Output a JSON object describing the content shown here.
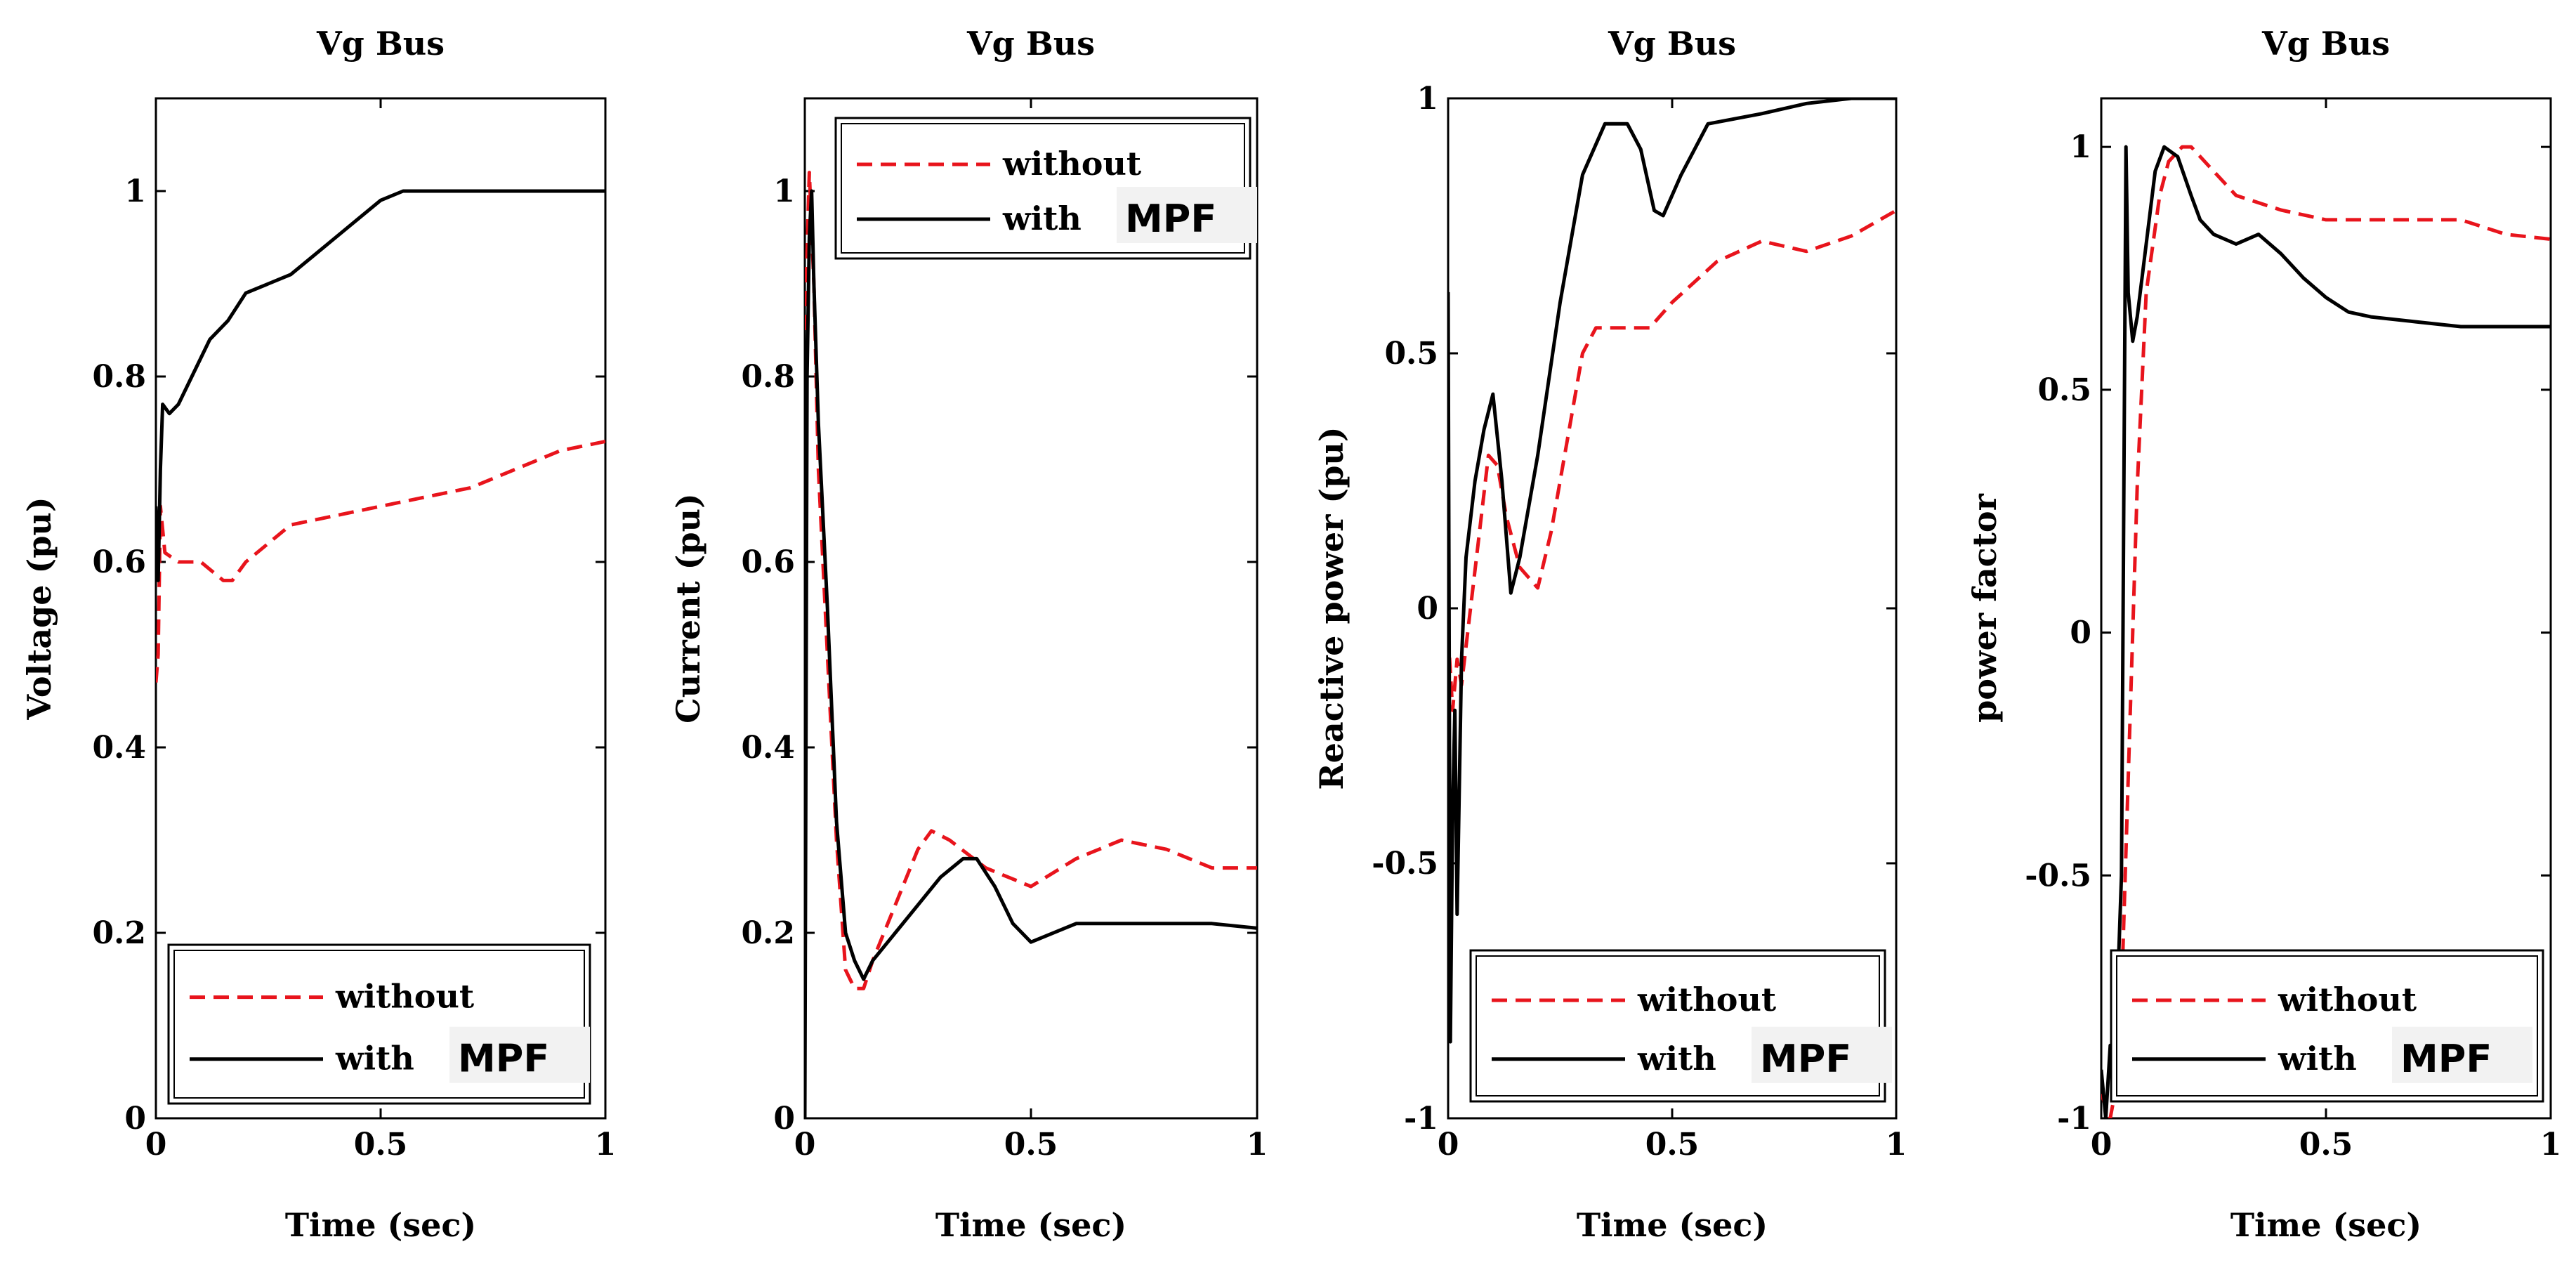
{
  "chart_data": [
    {
      "type": "line",
      "title": "Vg Bus",
      "xlabel": "Time (sec)",
      "ylabel": "Voltage (pu)",
      "xlim": [
        0,
        1
      ],
      "ylim": [
        0,
        1.1
      ],
      "xticks": [
        {
          "value": 0,
          "label": "0"
        },
        {
          "value": 0.5,
          "label": "0.5"
        },
        {
          "value": 1,
          "label": "1"
        }
      ],
      "yticks": [
        {
          "value": 0,
          "label": "0"
        },
        {
          "value": 0.2,
          "label": "0.2"
        },
        {
          "value": 0.4,
          "label": "0.4"
        },
        {
          "value": 0.6,
          "label": "0.6"
        },
        {
          "value": 0.8,
          "label": "0.8"
        },
        {
          "value": 1,
          "label": "1"
        }
      ],
      "legend": {
        "position": "bottom",
        "items": [
          {
            "name": "without",
            "suffix": ""
          },
          {
            "name": "with",
            "suffix": "MPF"
          }
        ]
      },
      "series": [
        {
          "name": "without",
          "color": "#e8141c",
          "dash": "dashed",
          "points": [
            [
              0,
              0.47
            ],
            [
              0.005,
              0.5
            ],
            [
              0.01,
              0.66
            ],
            [
              0.02,
              0.61
            ],
            [
              0.05,
              0.6
            ],
            [
              0.1,
              0.6
            ],
            [
              0.15,
              0.58
            ],
            [
              0.17,
              0.58
            ],
            [
              0.2,
              0.6
            ],
            [
              0.25,
              0.62
            ],
            [
              0.3,
              0.64
            ],
            [
              0.4,
              0.65
            ],
            [
              0.5,
              0.66
            ],
            [
              0.6,
              0.67
            ],
            [
              0.7,
              0.68
            ],
            [
              0.8,
              0.7
            ],
            [
              0.9,
              0.72
            ],
            [
              1,
              0.73
            ]
          ]
        },
        {
          "name": "with MPF",
          "color": "#000000",
          "dash": "solid",
          "points": [
            [
              0,
              0.66
            ],
            [
              0.005,
              0.58
            ],
            [
              0.01,
              0.7
            ],
            [
              0.015,
              0.77
            ],
            [
              0.03,
              0.76
            ],
            [
              0.05,
              0.77
            ],
            [
              0.08,
              0.8
            ],
            [
              0.12,
              0.84
            ],
            [
              0.16,
              0.86
            ],
            [
              0.2,
              0.89
            ],
            [
              0.25,
              0.9
            ],
            [
              0.3,
              0.91
            ],
            [
              0.35,
              0.93
            ],
            [
              0.4,
              0.95
            ],
            [
              0.45,
              0.97
            ],
            [
              0.5,
              0.99
            ],
            [
              0.55,
              1.0
            ],
            [
              0.7,
              1.0
            ],
            [
              1,
              1.0
            ]
          ]
        }
      ]
    },
    {
      "type": "line",
      "title": "Vg Bus",
      "xlabel": "Time (sec)",
      "ylabel": "Current (pu)",
      "xlim": [
        0,
        1
      ],
      "ylim": [
        0,
        1.1
      ],
      "xticks": [
        {
          "value": 0,
          "label": "0"
        },
        {
          "value": 0.5,
          "label": "0.5"
        },
        {
          "value": 1,
          "label": "1"
        }
      ],
      "yticks": [
        {
          "value": 0,
          "label": "0"
        },
        {
          "value": 0.2,
          "label": "0.2"
        },
        {
          "value": 0.4,
          "label": "0.4"
        },
        {
          "value": 0.6,
          "label": "0.6"
        },
        {
          "value": 0.8,
          "label": "0.8"
        },
        {
          "value": 1,
          "label": "1"
        }
      ],
      "legend": {
        "position": "top",
        "items": [
          {
            "name": "without",
            "suffix": ""
          },
          {
            "name": "with",
            "suffix": "MPF"
          }
        ]
      },
      "series": [
        {
          "name": "without",
          "color": "#e8141c",
          "dash": "dashed",
          "points": [
            [
              0,
              0.85
            ],
            [
              0.01,
              1.02
            ],
            [
              0.02,
              0.9
            ],
            [
              0.03,
              0.7
            ],
            [
              0.05,
              0.5
            ],
            [
              0.07,
              0.3
            ],
            [
              0.09,
              0.16
            ],
            [
              0.11,
              0.14
            ],
            [
              0.13,
              0.14
            ],
            [
              0.15,
              0.17
            ],
            [
              0.2,
              0.23
            ],
            [
              0.25,
              0.29
            ],
            [
              0.28,
              0.31
            ],
            [
              0.32,
              0.3
            ],
            [
              0.4,
              0.27
            ],
            [
              0.5,
              0.25
            ],
            [
              0.6,
              0.28
            ],
            [
              0.7,
              0.3
            ],
            [
              0.8,
              0.29
            ],
            [
              0.9,
              0.27
            ],
            [
              1,
              0.27
            ]
          ]
        },
        {
          "name": "with MPF",
          "color": "#000000",
          "dash": "solid",
          "points": [
            [
              0,
              0
            ],
            [
              0.005,
              0.8
            ],
            [
              0.01,
              0.95
            ],
            [
              0.015,
              1.0
            ],
            [
              0.02,
              0.9
            ],
            [
              0.03,
              0.75
            ],
            [
              0.05,
              0.55
            ],
            [
              0.07,
              0.32
            ],
            [
              0.09,
              0.2
            ],
            [
              0.11,
              0.17
            ],
            [
              0.13,
              0.15
            ],
            [
              0.15,
              0.17
            ],
            [
              0.2,
              0.2
            ],
            [
              0.25,
              0.23
            ],
            [
              0.3,
              0.26
            ],
            [
              0.35,
              0.28
            ],
            [
              0.38,
              0.28
            ],
            [
              0.42,
              0.25
            ],
            [
              0.46,
              0.21
            ],
            [
              0.5,
              0.19
            ],
            [
              0.6,
              0.21
            ],
            [
              0.7,
              0.21
            ],
            [
              0.8,
              0.21
            ],
            [
              0.9,
              0.21
            ],
            [
              1,
              0.205
            ]
          ]
        }
      ]
    },
    {
      "type": "line",
      "title": "Vg Bus",
      "xlabel": "Time (sec)",
      "ylabel": "Reactive power (pu)",
      "xlim": [
        0,
        1
      ],
      "ylim": [
        -1,
        1
      ],
      "xticks": [
        {
          "value": 0,
          "label": "0"
        },
        {
          "value": 0.5,
          "label": "0.5"
        },
        {
          "value": 1,
          "label": "1"
        }
      ],
      "yticks": [
        {
          "value": -1,
          "label": "-1"
        },
        {
          "value": -0.5,
          "label": "-0.5"
        },
        {
          "value": 0,
          "label": "0"
        },
        {
          "value": 0.5,
          "label": "0.5"
        },
        {
          "value": 1,
          "label": "1"
        }
      ],
      "legend": {
        "position": "bottom",
        "items": [
          {
            "name": "without",
            "suffix": ""
          },
          {
            "name": "with",
            "suffix": "MPF"
          }
        ]
      },
      "series": [
        {
          "name": "without",
          "color": "#e8141c",
          "dash": "dashed",
          "points": [
            [
              0,
              -0.05
            ],
            [
              0.01,
              -0.2
            ],
            [
              0.02,
              -0.1
            ],
            [
              0.03,
              -0.15
            ],
            [
              0.05,
              0.0
            ],
            [
              0.07,
              0.15
            ],
            [
              0.09,
              0.3
            ],
            [
              0.11,
              0.28
            ],
            [
              0.13,
              0.18
            ],
            [
              0.16,
              0.08
            ],
            [
              0.2,
              0.04
            ],
            [
              0.23,
              0.15
            ],
            [
              0.27,
              0.35
            ],
            [
              0.3,
              0.5
            ],
            [
              0.33,
              0.55
            ],
            [
              0.4,
              0.55
            ],
            [
              0.45,
              0.55
            ],
            [
              0.5,
              0.6
            ],
            [
              0.6,
              0.68
            ],
            [
              0.7,
              0.72
            ],
            [
              0.8,
              0.7
            ],
            [
              0.9,
              0.73
            ],
            [
              1,
              0.78
            ]
          ]
        },
        {
          "name": "with MPF",
          "color": "#000000",
          "dash": "solid",
          "points": [
            [
              0,
              0.62
            ],
            [
              0.005,
              -0.85
            ],
            [
              0.01,
              -0.4
            ],
            [
              0.015,
              -0.2
            ],
            [
              0.02,
              -0.6
            ],
            [
              0.03,
              -0.1
            ],
            [
              0.04,
              0.1
            ],
            [
              0.06,
              0.25
            ],
            [
              0.08,
              0.35
            ],
            [
              0.1,
              0.42
            ],
            [
              0.12,
              0.25
            ],
            [
              0.14,
              0.03
            ],
            [
              0.16,
              0.1
            ],
            [
              0.2,
              0.3
            ],
            [
              0.25,
              0.6
            ],
            [
              0.3,
              0.85
            ],
            [
              0.35,
              0.95
            ],
            [
              0.4,
              0.95
            ],
            [
              0.43,
              0.9
            ],
            [
              0.46,
              0.78
            ],
            [
              0.48,
              0.77
            ],
            [
              0.52,
              0.85
            ],
            [
              0.58,
              0.95
            ],
            [
              0.7,
              0.97
            ],
            [
              0.8,
              0.99
            ],
            [
              0.9,
              1.0
            ],
            [
              1,
              1.0
            ]
          ]
        }
      ]
    },
    {
      "type": "line",
      "title": "Vg Bus",
      "xlabel": "Time (sec)",
      "ylabel": "power factor",
      "xlim": [
        0,
        1
      ],
      "ylim": [
        -1,
        1.1
      ],
      "xticks": [
        {
          "value": 0,
          "label": "0"
        },
        {
          "value": 0.5,
          "label": "0.5"
        },
        {
          "value": 1,
          "label": "1"
        }
      ],
      "yticks": [
        {
          "value": -1,
          "label": "-1"
        },
        {
          "value": -0.5,
          "label": "-0.5"
        },
        {
          "value": 0,
          "label": "0"
        },
        {
          "value": 0.5,
          "label": "0.5"
        },
        {
          "value": 1,
          "label": "1"
        }
      ],
      "legend": {
        "position": "bottom",
        "items": [
          {
            "name": "without",
            "suffix": ""
          },
          {
            "name": "with",
            "suffix": "MPF"
          }
        ]
      },
      "series": [
        {
          "name": "without",
          "color": "#e8141c",
          "dash": "dashed",
          "points": [
            [
              0,
              -0.95
            ],
            [
              0.02,
              -1.0
            ],
            [
              0.04,
              -0.9
            ],
            [
              0.06,
              -0.3
            ],
            [
              0.08,
              0.3
            ],
            [
              0.1,
              0.7
            ],
            [
              0.13,
              0.9
            ],
            [
              0.15,
              0.97
            ],
            [
              0.18,
              1.0
            ],
            [
              0.2,
              1.0
            ],
            [
              0.25,
              0.95
            ],
            [
              0.3,
              0.9
            ],
            [
              0.4,
              0.87
            ],
            [
              0.5,
              0.85
            ],
            [
              0.6,
              0.85
            ],
            [
              0.7,
              0.85
            ],
            [
              0.8,
              0.85
            ],
            [
              0.9,
              0.82
            ],
            [
              1,
              0.81
            ]
          ]
        },
        {
          "name": "with MPF",
          "color": "#000000",
          "dash": "solid",
          "points": [
            [
              0,
              -0.9
            ],
            [
              0.01,
              -1.0
            ],
            [
              0.02,
              -0.85
            ],
            [
              0.03,
              -0.9
            ],
            [
              0.045,
              -0.5
            ],
            [
              0.055,
              1.0
            ],
            [
              0.06,
              0.7
            ],
            [
              0.07,
              0.6
            ],
            [
              0.08,
              0.65
            ],
            [
              0.1,
              0.8
            ],
            [
              0.12,
              0.95
            ],
            [
              0.14,
              1.0
            ],
            [
              0.17,
              0.98
            ],
            [
              0.2,
              0.9
            ],
            [
              0.22,
              0.85
            ],
            [
              0.25,
              0.82
            ],
            [
              0.3,
              0.8
            ],
            [
              0.35,
              0.82
            ],
            [
              0.4,
              0.78
            ],
            [
              0.45,
              0.73
            ],
            [
              0.5,
              0.69
            ],
            [
              0.55,
              0.66
            ],
            [
              0.6,
              0.65
            ],
            [
              0.7,
              0.64
            ],
            [
              0.8,
              0.63
            ],
            [
              0.9,
              0.63
            ],
            [
              1,
              0.63
            ]
          ]
        }
      ]
    }
  ]
}
